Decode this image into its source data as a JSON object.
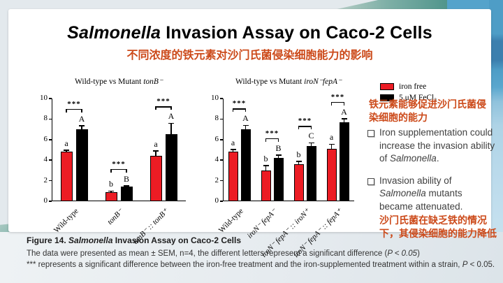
{
  "slide": {
    "title_italic": "Salmonella",
    "title_rest": " Invasion Assay on Caco-2 Cells",
    "subtitle_cn": "不同浓度的铁元素对沙门氏菌侵染细胞能力的影响"
  },
  "legend": {
    "items": [
      {
        "label": "iron free",
        "color": "#ec1c24"
      },
      {
        "label": "5 μM FeCl₃",
        "color": "#000000"
      }
    ]
  },
  "insights": {
    "promote_cn": "铁元素能够促进沙门氏菌侵染细胞的能力",
    "bullet1": {
      "pre": "Iron supplementation could increase the invasion ability of ",
      "it": "Salmonella",
      "post": "."
    },
    "bullet2": {
      "pre": "Invasion ability of ",
      "it": "Salmonella",
      "post": " mutants became attenuated."
    },
    "attenuate_cn": "沙门氏菌在缺乏铁的情况下，其侵染细胞的能力降低"
  },
  "caption": {
    "fig_pre": "Figure 14. ",
    "fig_it": "Salmonella",
    "fig_post": " Invasion Assay on Caco-2 Cells",
    "b1_pre": "The data were presented as mean ± SEM, n=4, the different letters represent a significant difference (",
    "b1_it": "P < 0.05",
    "b1_post": ")",
    "b2_pre": "*** represents a significant difference between the iron-free treatment and the iron-supplemented treatment within a strain, ",
    "b2_it": "P",
    "b2_post": " < 0.05."
  },
  "chart_data": [
    {
      "type": "bar",
      "title_prefix": "Wild-type vs Mutant ",
      "title_gene": "tonB⁻",
      "ylim": [
        0,
        10
      ],
      "yticks": [
        0,
        2,
        4,
        6,
        8,
        10
      ],
      "series": [
        {
          "name": "iron free",
          "color": "#ec1c24"
        },
        {
          "name": "5 μM FeCl₃",
          "color": "#000000"
        }
      ],
      "groups": [
        {
          "label": "Wild-type",
          "italic": false,
          "values": [
            4.8,
            7.0
          ],
          "errors": [
            0.2,
            0.35
          ],
          "letters": [
            "a",
            "A"
          ],
          "sig": "***"
        },
        {
          "label": "tonB⁻",
          "italic": true,
          "values": [
            0.9,
            1.4
          ],
          "errors": [
            0.1,
            0.1
          ],
          "letters": [
            "b",
            "B"
          ],
          "sig": "***"
        },
        {
          "label": "tonB⁻ :: tonB⁺",
          "italic": true,
          "values": [
            4.4,
            6.5
          ],
          "errors": [
            0.5,
            1.1
          ],
          "letters": [
            "a",
            "A"
          ],
          "sig": "***"
        }
      ]
    },
    {
      "type": "bar",
      "title_prefix": "Wild-type vs Mutant ",
      "title_gene": "iroN⁻fepA⁻",
      "ylim": [
        0,
        10
      ],
      "yticks": [
        0,
        2,
        4,
        6,
        8,
        10
      ],
      "series": [
        {
          "name": "iron free",
          "color": "#ec1c24"
        },
        {
          "name": "5 μM FeCl₃",
          "color": "#000000"
        }
      ],
      "groups": [
        {
          "label": "Wild-type",
          "italic": false,
          "values": [
            4.85,
            7.0
          ],
          "errors": [
            0.2,
            0.4
          ],
          "letters": [
            "a",
            "A"
          ],
          "sig": "***"
        },
        {
          "label": "iroN⁻ fepA⁻",
          "italic": true,
          "values": [
            3.0,
            4.2
          ],
          "errors": [
            0.5,
            0.3
          ],
          "letters": [
            "b",
            "B"
          ],
          "sig": "***"
        },
        {
          "label": "iroN⁻ fepA⁻ :: iroN⁺",
          "italic": true,
          "values": [
            3.6,
            5.4
          ],
          "errors": [
            0.3,
            0.3
          ],
          "letters": [
            "b",
            "C"
          ],
          "sig": "***"
        },
        {
          "label": "iroN⁻ fepA⁻ :: fepA⁺",
          "italic": true,
          "values": [
            5.1,
            7.7
          ],
          "errors": [
            0.45,
            0.35
          ],
          "letters": [
            "a",
            "A"
          ],
          "sig": "***"
        }
      ]
    }
  ]
}
